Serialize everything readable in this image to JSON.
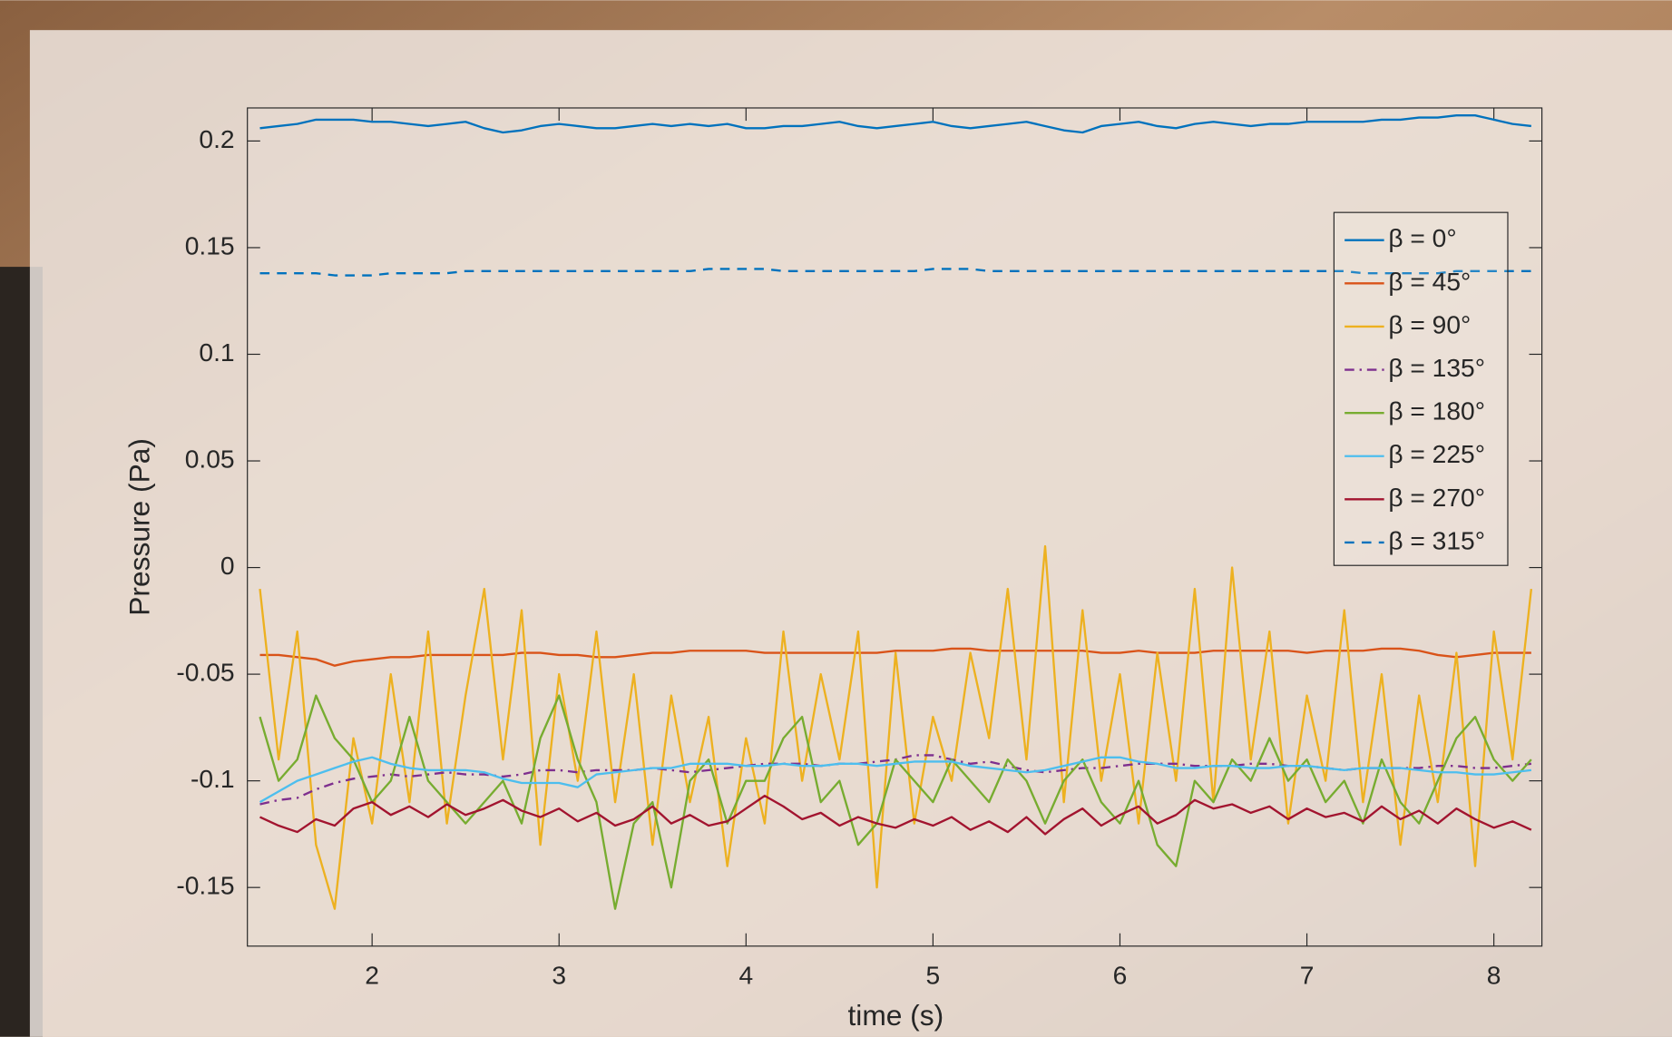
{
  "chart_data": {
    "type": "line",
    "x_label": "time (s)",
    "y_label": "Pressure (Pa)",
    "xlim": [
      1.333,
      8.257
    ],
    "xticks": [
      2,
      3,
      4,
      5,
      6,
      7,
      8
    ],
    "ylim": [
      -0.1775,
      0.2155
    ],
    "yticks": [
      -0.15,
      -0.1,
      -0.05,
      0,
      0.05,
      0.1,
      0.15,
      0.2
    ],
    "legend": "upper-right",
    "x": [
      1.4,
      1.5,
      1.6,
      1.7,
      1.8,
      1.9,
      2.0,
      2.1,
      2.2,
      2.3,
      2.4,
      2.5,
      2.6,
      2.7,
      2.8,
      2.9,
      3.0,
      3.1,
      3.2,
      3.3,
      3.4,
      3.5,
      3.6,
      3.7,
      3.8,
      3.9,
      4.0,
      4.1,
      4.2,
      4.3,
      4.4,
      4.5,
      4.6,
      4.7,
      4.8,
      4.9,
      5.0,
      5.1,
      5.2,
      5.3,
      5.4,
      5.5,
      5.6,
      5.7,
      5.8,
      5.9,
      6.0,
      6.1,
      6.2,
      6.3,
      6.4,
      6.5,
      6.6,
      6.7,
      6.8,
      6.9,
      7.0,
      7.1,
      7.2,
      7.3,
      7.4,
      7.5,
      7.6,
      7.7,
      7.8,
      7.9,
      8.0,
      8.1,
      8.2
    ],
    "series": [
      {
        "name": "β = 0°",
        "color": "#0072bd",
        "linestyle": "solid",
        "values": [
          0.206,
          0.207,
          0.208,
          0.21,
          0.21,
          0.21,
          0.209,
          0.209,
          0.208,
          0.207,
          0.208,
          0.209,
          0.206,
          0.204,
          0.205,
          0.207,
          0.208,
          0.207,
          0.206,
          0.206,
          0.207,
          0.208,
          0.207,
          0.208,
          0.207,
          0.208,
          0.206,
          0.206,
          0.207,
          0.207,
          0.208,
          0.209,
          0.207,
          0.206,
          0.207,
          0.208,
          0.209,
          0.207,
          0.206,
          0.207,
          0.208,
          0.209,
          0.207,
          0.205,
          0.204,
          0.207,
          0.208,
          0.209,
          0.207,
          0.206,
          0.208,
          0.209,
          0.208,
          0.207,
          0.208,
          0.208,
          0.209,
          0.209,
          0.209,
          0.209,
          0.21,
          0.21,
          0.211,
          0.211,
          0.212,
          0.212,
          0.21,
          0.208,
          0.207
        ]
      },
      {
        "name": "β = 45°",
        "color": "#d95319",
        "linestyle": "solid",
        "values": [
          -0.041,
          -0.041,
          -0.042,
          -0.043,
          -0.046,
          -0.044,
          -0.043,
          -0.042,
          -0.042,
          -0.041,
          -0.041,
          -0.041,
          -0.041,
          -0.041,
          -0.04,
          -0.04,
          -0.041,
          -0.041,
          -0.042,
          -0.042,
          -0.041,
          -0.04,
          -0.04,
          -0.039,
          -0.039,
          -0.039,
          -0.039,
          -0.04,
          -0.04,
          -0.04,
          -0.04,
          -0.04,
          -0.04,
          -0.04,
          -0.039,
          -0.039,
          -0.039,
          -0.038,
          -0.038,
          -0.039,
          -0.039,
          -0.039,
          -0.039,
          -0.039,
          -0.039,
          -0.04,
          -0.04,
          -0.039,
          -0.04,
          -0.04,
          -0.04,
          -0.039,
          -0.039,
          -0.039,
          -0.039,
          -0.039,
          -0.04,
          -0.039,
          -0.039,
          -0.039,
          -0.038,
          -0.038,
          -0.039,
          -0.041,
          -0.042,
          -0.041,
          -0.04,
          -0.04,
          -0.04
        ]
      },
      {
        "name": "β = 90°",
        "color": "#edb120",
        "linestyle": "solid",
        "values": [
          -0.01,
          -0.09,
          -0.03,
          -0.13,
          -0.16,
          -0.08,
          -0.12,
          -0.05,
          -0.11,
          -0.03,
          -0.12,
          -0.06,
          -0.01,
          -0.09,
          -0.02,
          -0.13,
          -0.05,
          -0.1,
          -0.03,
          -0.11,
          -0.05,
          -0.13,
          -0.06,
          -0.11,
          -0.07,
          -0.14,
          -0.08,
          -0.12,
          -0.03,
          -0.1,
          -0.05,
          -0.09,
          -0.03,
          -0.15,
          -0.04,
          -0.12,
          -0.07,
          -0.1,
          -0.04,
          -0.08,
          -0.01,
          -0.09,
          0.01,
          -0.11,
          -0.02,
          -0.1,
          -0.05,
          -0.12,
          -0.04,
          -0.1,
          -0.01,
          -0.11,
          0.0,
          -0.09,
          -0.03,
          -0.12,
          -0.06,
          -0.1,
          -0.02,
          -0.11,
          -0.05,
          -0.13,
          -0.06,
          -0.11,
          -0.04,
          -0.14,
          -0.03,
          -0.09,
          -0.01
        ]
      },
      {
        "name": "β = 135°",
        "color": "#7e2f8e",
        "linestyle": "dashdot",
        "values": [
          -0.111,
          -0.109,
          -0.108,
          -0.104,
          -0.101,
          -0.099,
          -0.098,
          -0.097,
          -0.098,
          -0.097,
          -0.096,
          -0.097,
          -0.097,
          -0.098,
          -0.097,
          -0.095,
          -0.095,
          -0.096,
          -0.095,
          -0.095,
          -0.095,
          -0.094,
          -0.095,
          -0.096,
          -0.095,
          -0.094,
          -0.093,
          -0.092,
          -0.092,
          -0.092,
          -0.093,
          -0.092,
          -0.092,
          -0.091,
          -0.09,
          -0.088,
          -0.088,
          -0.09,
          -0.092,
          -0.091,
          -0.093,
          -0.095,
          -0.096,
          -0.095,
          -0.094,
          -0.094,
          -0.093,
          -0.092,
          -0.092,
          -0.092,
          -0.093,
          -0.093,
          -0.093,
          -0.092,
          -0.092,
          -0.093,
          -0.093,
          -0.094,
          -0.095,
          -0.094,
          -0.094,
          -0.094,
          -0.094,
          -0.093,
          -0.093,
          -0.094,
          -0.094,
          -0.093,
          -0.092
        ]
      },
      {
        "name": "β = 180°",
        "color": "#77ac30",
        "linestyle": "solid",
        "values": [
          -0.07,
          -0.1,
          -0.09,
          -0.06,
          -0.08,
          -0.09,
          -0.11,
          -0.1,
          -0.07,
          -0.1,
          -0.11,
          -0.12,
          -0.11,
          -0.1,
          -0.12,
          -0.08,
          -0.06,
          -0.09,
          -0.11,
          -0.16,
          -0.12,
          -0.11,
          -0.15,
          -0.1,
          -0.09,
          -0.12,
          -0.1,
          -0.1,
          -0.08,
          -0.07,
          -0.11,
          -0.1,
          -0.13,
          -0.12,
          -0.09,
          -0.1,
          -0.11,
          -0.09,
          -0.1,
          -0.11,
          -0.09,
          -0.1,
          -0.12,
          -0.1,
          -0.09,
          -0.11,
          -0.12,
          -0.1,
          -0.13,
          -0.14,
          -0.1,
          -0.11,
          -0.09,
          -0.1,
          -0.08,
          -0.1,
          -0.09,
          -0.11,
          -0.1,
          -0.12,
          -0.09,
          -0.11,
          -0.12,
          -0.1,
          -0.08,
          -0.07,
          -0.09,
          -0.1,
          -0.09
        ]
      },
      {
        "name": "β = 225°",
        "color": "#4dbeee",
        "linestyle": "solid",
        "values": [
          -0.11,
          -0.105,
          -0.1,
          -0.097,
          -0.094,
          -0.091,
          -0.089,
          -0.092,
          -0.094,
          -0.095,
          -0.095,
          -0.095,
          -0.096,
          -0.099,
          -0.101,
          -0.101,
          -0.101,
          -0.103,
          -0.097,
          -0.096,
          -0.095,
          -0.094,
          -0.094,
          -0.092,
          -0.092,
          -0.092,
          -0.093,
          -0.093,
          -0.092,
          -0.093,
          -0.093,
          -0.092,
          -0.092,
          -0.093,
          -0.092,
          -0.091,
          -0.091,
          -0.091,
          -0.093,
          -0.094,
          -0.095,
          -0.096,
          -0.095,
          -0.093,
          -0.091,
          -0.089,
          -0.089,
          -0.091,
          -0.092,
          -0.094,
          -0.094,
          -0.093,
          -0.093,
          -0.094,
          -0.094,
          -0.093,
          -0.093,
          -0.094,
          -0.095,
          -0.094,
          -0.094,
          -0.094,
          -0.095,
          -0.096,
          -0.096,
          -0.097,
          -0.097,
          -0.096,
          -0.095
        ]
      },
      {
        "name": "β = 270°",
        "color": "#a2142f",
        "linestyle": "solid",
        "values": [
          -0.117,
          -0.121,
          -0.124,
          -0.118,
          -0.121,
          -0.113,
          -0.11,
          -0.116,
          -0.112,
          -0.117,
          -0.111,
          -0.116,
          -0.113,
          -0.109,
          -0.114,
          -0.117,
          -0.113,
          -0.119,
          -0.115,
          -0.121,
          -0.118,
          -0.112,
          -0.12,
          -0.116,
          -0.121,
          -0.119,
          -0.113,
          -0.107,
          -0.112,
          -0.118,
          -0.115,
          -0.121,
          -0.117,
          -0.12,
          -0.122,
          -0.118,
          -0.121,
          -0.117,
          -0.123,
          -0.119,
          -0.124,
          -0.117,
          -0.125,
          -0.118,
          -0.113,
          -0.121,
          -0.116,
          -0.112,
          -0.12,
          -0.116,
          -0.109,
          -0.113,
          -0.111,
          -0.115,
          -0.112,
          -0.118,
          -0.113,
          -0.117,
          -0.115,
          -0.119,
          -0.112,
          -0.118,
          -0.114,
          -0.12,
          -0.113,
          -0.118,
          -0.122,
          -0.119,
          -0.123
        ]
      },
      {
        "name": "β = 315°",
        "color": "#0072bd",
        "linestyle": "dashed",
        "values": [
          0.138,
          0.138,
          0.138,
          0.138,
          0.137,
          0.137,
          0.137,
          0.138,
          0.138,
          0.138,
          0.138,
          0.139,
          0.139,
          0.139,
          0.139,
          0.139,
          0.139,
          0.139,
          0.139,
          0.139,
          0.139,
          0.139,
          0.139,
          0.139,
          0.14,
          0.14,
          0.14,
          0.14,
          0.139,
          0.139,
          0.139,
          0.139,
          0.139,
          0.139,
          0.139,
          0.139,
          0.14,
          0.14,
          0.14,
          0.139,
          0.139,
          0.139,
          0.139,
          0.139,
          0.139,
          0.139,
          0.139,
          0.139,
          0.139,
          0.139,
          0.139,
          0.139,
          0.139,
          0.139,
          0.139,
          0.139,
          0.139,
          0.139,
          0.139,
          0.138,
          0.138,
          0.138,
          0.138,
          0.138,
          0.139,
          0.139,
          0.139,
          0.139,
          0.139
        ]
      }
    ]
  }
}
